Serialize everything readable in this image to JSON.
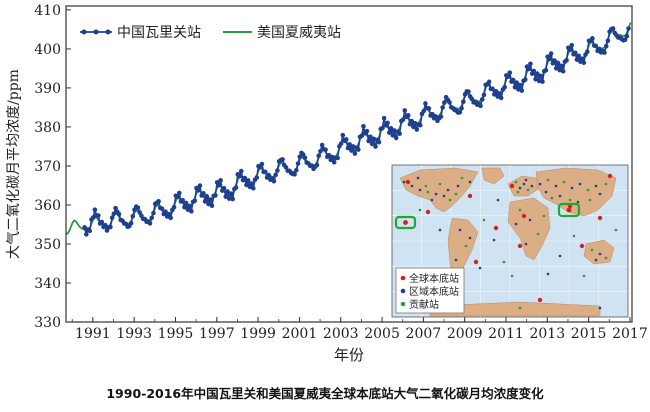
{
  "caption": "1990-2016年中国瓦里关和美国夏威夷全球本底站大气二氧化碳月均浓度变化",
  "chart_data": {
    "type": "line",
    "xlabel": "年份",
    "ylabel": "大气二氧化碳月平均浓度/ppm",
    "xlim": [
      1989.7,
      2017.1
    ],
    "ylim": [
      330,
      411
    ],
    "x_ticks": [
      "1991",
      "1993",
      "1995",
      "1997",
      "1999",
      "2001",
      "2003",
      "2005",
      "2007",
      "2009",
      "2011",
      "2013",
      "2015",
      "2017"
    ],
    "y_ticks": [
      "330",
      "340",
      "350",
      "360",
      "370",
      "380",
      "390",
      "400",
      "410"
    ],
    "legend_placement": "top-left",
    "series": [
      {
        "name": "中国瓦里关站",
        "color": "#1f3f8f",
        "marker": "circle",
        "start_year": 1990.6,
        "note": "monthly values, read approximately from the plot",
        "annual_mean": [
          [
            1990.5,
            355.0
          ],
          [
            1991.5,
            355.8
          ],
          [
            1992.5,
            356.4
          ],
          [
            1993.5,
            357.2
          ],
          [
            1994.5,
            358.8
          ],
          [
            1995.5,
            360.8
          ],
          [
            1996.5,
            362.4
          ],
          [
            1997.5,
            363.6
          ],
          [
            1998.5,
            366.6
          ],
          [
            1999.5,
            368.2
          ],
          [
            2000.5,
            369.6
          ],
          [
            2001.5,
            371.2
          ],
          [
            2002.5,
            373.0
          ],
          [
            2003.5,
            375.6
          ],
          [
            2004.5,
            377.4
          ],
          [
            2005.5,
            379.6
          ],
          [
            2006.5,
            381.6
          ],
          [
            2007.5,
            383.6
          ],
          [
            2008.5,
            385.4
          ],
          [
            2009.5,
            387.2
          ],
          [
            2010.5,
            389.6
          ],
          [
            2011.5,
            391.6
          ],
          [
            2012.5,
            393.8
          ],
          [
            2013.5,
            396.6
          ],
          [
            2014.5,
            398.6
          ],
          [
            2015.5,
            400.6
          ],
          [
            2016.5,
            403.8
          ],
          [
            2017.0,
            405.0
          ]
        ],
        "seasonal_amplitude": 5.2
      },
      {
        "name": "美国夏威夷站",
        "color": "#2e9a3e",
        "marker": "none",
        "note": "monthly values, read approximately from the plot",
        "annual_mean": [
          [
            1989.7,
            354.0
          ],
          [
            1990.5,
            354.5
          ],
          [
            1991.5,
            355.6
          ],
          [
            1992.5,
            356.4
          ],
          [
            1993.5,
            357.1
          ],
          [
            1994.5,
            358.8
          ],
          [
            1995.5,
            360.8
          ],
          [
            1996.5,
            362.6
          ],
          [
            1997.5,
            363.7
          ],
          [
            1998.5,
            366.6
          ],
          [
            1999.5,
            368.3
          ],
          [
            2000.5,
            369.5
          ],
          [
            2001.5,
            371.1
          ],
          [
            2002.5,
            373.2
          ],
          [
            2003.5,
            375.8
          ],
          [
            2004.5,
            377.5
          ],
          [
            2005.5,
            379.8
          ],
          [
            2006.5,
            381.9
          ],
          [
            2007.5,
            383.8
          ],
          [
            2008.5,
            385.6
          ],
          [
            2009.5,
            387.4
          ],
          [
            2010.5,
            389.9
          ],
          [
            2011.5,
            391.7
          ],
          [
            2012.5,
            393.9
          ],
          [
            2013.5,
            396.5
          ],
          [
            2014.5,
            398.6
          ],
          [
            2015.5,
            400.8
          ],
          [
            2016.5,
            404.2
          ],
          [
            2017.1,
            405.5
          ]
        ],
        "seasonal_amplitude": 3.4
      }
    ],
    "inset_map": {
      "legend": [
        {
          "label": "全球本底站",
          "color": "#d62020"
        },
        {
          "label": "区域本底站",
          "color": "#1f3f8f"
        },
        {
          "label": "贡献站",
          "color": "#2e9a3e"
        }
      ],
      "ocean_color": "#cfe3f3",
      "land_color": "#dcae86"
    }
  }
}
